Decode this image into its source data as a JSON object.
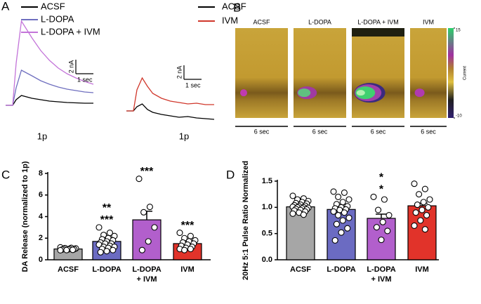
{
  "chart_data": [
    {
      "type": "line",
      "panel": "A",
      "x": [
        0,
        0.4,
        0.6,
        0.9,
        1.2,
        1.5,
        2,
        2.5,
        3,
        3.5,
        4,
        4.5,
        5
      ],
      "series": [
        {
          "name": "ACSF",
          "color": "#000000",
          "values": [
            0,
            0,
            0.8,
            1.4,
            1.2,
            1.0,
            0.8,
            0.6,
            0.5,
            0.4,
            0.35,
            0.3,
            0.3
          ]
        },
        {
          "name": "L-DOPA",
          "color": "#6f6fbf",
          "values": [
            0,
            0,
            2.5,
            5,
            4.6,
            4.2,
            3.5,
            3.0,
            2.6,
            2.3,
            2.1,
            1.9,
            1.8
          ]
        },
        {
          "name": "L-DOPA + IVM",
          "color": "#c374d9",
          "values": [
            0,
            0,
            6,
            12,
            10.8,
            9.6,
            7.8,
            6.4,
            5.3,
            4.5,
            3.9,
            3.4,
            3.0
          ]
        }
      ],
      "scale_bars": {
        "y": {
          "value": 2,
          "label": "2 nA"
        },
        "x": {
          "value": 1,
          "label": "1 sec"
        }
      },
      "xlabel": "1p"
    },
    {
      "type": "line",
      "x": [
        0,
        0.4,
        0.6,
        0.9,
        1.2,
        1.5,
        2,
        2.5,
        3,
        3.5,
        4,
        4.5,
        5
      ],
      "series": [
        {
          "name": "ACSF",
          "color": "#000000",
          "values": [
            0,
            0,
            0.6,
            1.0,
            0.2,
            -0.2,
            -0.5,
            -0.7,
            -0.9,
            -0.8,
            -1.0,
            -1.1,
            -1.2
          ]
        },
        {
          "name": "IVM",
          "color": "#d0372b",
          "values": [
            0,
            0,
            3,
            4.7,
            3.5,
            2.5,
            1.8,
            1.4,
            1.2,
            1.0,
            1.1,
            0.9,
            0.9
          ]
        }
      ],
      "scale_bars": {
        "y": {
          "value": 2,
          "label": "2 nA"
        },
        "x": {
          "value": 1,
          "label": "1 sec"
        }
      },
      "xlabel": "1p"
    },
    {
      "type": "heatmap",
      "panel": "B",
      "categories": [
        "ACSF",
        "L-DOPA",
        "L-DOPA + IVM",
        "IVM"
      ],
      "duration_label": "6 sec",
      "colorbar": {
        "label": "Current",
        "clim": [
          -10,
          15
        ],
        "ticks": [
          15,
          -10
        ]
      }
    },
    {
      "type": "bar",
      "panel": "C",
      "ylabel": "DA Release (normalized to 1p)",
      "categories": [
        "ACSF",
        "L-DOPA",
        "L-DOPA\n+ IVM",
        "IVM"
      ],
      "colors": [
        "#a6a6a6",
        "#6b6bc2",
        "#b25fcc",
        "#e1332a"
      ],
      "values": [
        1.0,
        1.7,
        3.7,
        1.5
      ],
      "errors": [
        0.05,
        0.25,
        0.8,
        0.15
      ],
      "points": [
        [
          1.15,
          1.1,
          1.08,
          1.05,
          1.02,
          1.0,
          0.98,
          0.96,
          0.94,
          0.92,
          0.9,
          0.88
        ],
        [
          3.0,
          2.5,
          2.3,
          2.2,
          2.0,
          1.9,
          1.8,
          1.7,
          1.6,
          1.5,
          1.5,
          1.4,
          1.3,
          1.2,
          1.2,
          1.1,
          1.0,
          0.9,
          0.8,
          0.7
        ],
        [
          7.5,
          4.9,
          4.4,
          3.0,
          1.7,
          0.9
        ],
        [
          2.5,
          2.2,
          2.0,
          1.8,
          1.7,
          1.6,
          1.5,
          1.4,
          1.3,
          1.2,
          1.1,
          1.0,
          1.0,
          0.9
        ]
      ],
      "annotations": [
        [],
        [
          {
            "text": "**",
            "color": "#a6a6a6"
          },
          {
            "text": "***",
            "color": "#b25fcc"
          }
        ],
        [
          {
            "text": "***",
            "color": "#a6a6a6"
          }
        ],
        [
          {
            "text": "***",
            "color": "#b25fcc"
          }
        ]
      ],
      "ylim": [
        0,
        8
      ],
      "yticks": [
        0,
        2,
        4,
        6,
        8
      ]
    },
    {
      "type": "bar",
      "panel": "D",
      "ylabel": "20Hz 5:1 Pulse Ratio Normalized",
      "categories": [
        "ACSF",
        "L-DOPA",
        "L-DOPA\n+ IVM",
        "IVM"
      ],
      "colors": [
        "#a6a6a6",
        "#6b6bc2",
        "#b25fcc",
        "#e1332a"
      ],
      "values": [
        1.01,
        0.96,
        0.79,
        1.03
      ],
      "errors": [
        0.03,
        0.05,
        0.08,
        0.05
      ],
      "points": [
        [
          1.22,
          1.17,
          1.15,
          1.12,
          1.1,
          1.08,
          1.07,
          1.05,
          1.04,
          1.03,
          1.02,
          1.01,
          1.0,
          1.0,
          0.99,
          0.98,
          0.97,
          0.96,
          0.95,
          0.94,
          0.92,
          0.9,
          0.88,
          0.86
        ],
        [
          1.3,
          1.28,
          1.2,
          1.15,
          1.1,
          1.06,
          1.02,
          1.0,
          0.98,
          0.96,
          0.95,
          0.92,
          0.9,
          0.85,
          0.8,
          0.75,
          0.68,
          0.6,
          0.52,
          0.37
        ],
        [
          1.2,
          1.15,
          0.95,
          0.85,
          0.72,
          0.62,
          0.55,
          0.38
        ],
        [
          1.45,
          1.35,
          1.25,
          1.15,
          1.1,
          1.05,
          1.0,
          0.95,
          0.9,
          0.85,
          0.75,
          0.65,
          0.58
        ]
      ],
      "annotations": [
        [],
        [],
        [
          {
            "text": "*",
            "color": "#e1332a"
          },
          {
            "text": "*",
            "color": "#a6a6a6"
          }
        ],
        []
      ],
      "ylim": [
        0,
        1.5
      ],
      "yticks": [
        {
          "value": 0,
          "label": "0.0"
        },
        {
          "value": 0.5,
          "label": "0.5"
        },
        {
          "value": 1,
          "label": "1.0"
        },
        {
          "value": 1.5,
          "label": "1.5"
        }
      ]
    }
  ]
}
